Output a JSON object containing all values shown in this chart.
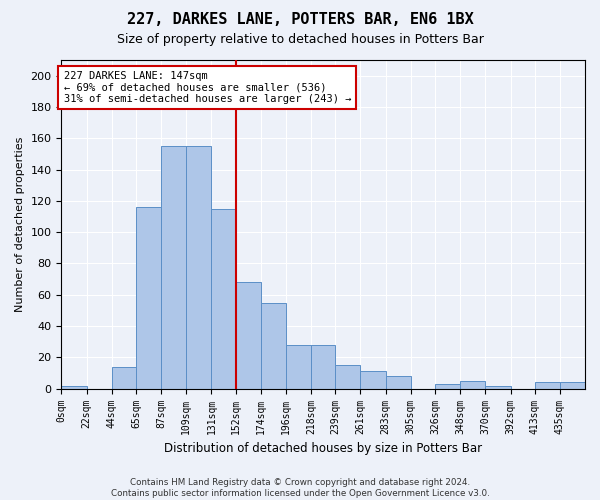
{
  "title": "227, DARKES LANE, POTTERS BAR, EN6 1BX",
  "subtitle": "Size of property relative to detached houses in Potters Bar",
  "xlabel": "Distribution of detached houses by size in Potters Bar",
  "ylabel": "Number of detached properties",
  "bar_color": "#aec6e8",
  "bar_edge_color": "#5b8fc7",
  "bin_labels": [
    "0sqm",
    "22sqm",
    "44sqm",
    "65sqm",
    "87sqm",
    "109sqm",
    "131sqm",
    "152sqm",
    "174sqm",
    "196sqm",
    "218sqm",
    "239sqm",
    "261sqm",
    "283sqm",
    "305sqm",
    "326sqm",
    "348sqm",
    "370sqm",
    "392sqm",
    "413sqm",
    "435sqm"
  ],
  "bar_heights": [
    2,
    0,
    14,
    116,
    155,
    155,
    115,
    68,
    55,
    28,
    28,
    15,
    11,
    8,
    0,
    3,
    5,
    2,
    0,
    4,
    4
  ],
  "vline_color": "#cc0000",
  "ylim": [
    0,
    210
  ],
  "yticks": [
    0,
    20,
    40,
    60,
    80,
    100,
    120,
    140,
    160,
    180,
    200
  ],
  "annotation_text": "227 DARKES LANE: 147sqm\n← 69% of detached houses are smaller (536)\n31% of semi-detached houses are larger (243) →",
  "annotation_box_color": "#ffffff",
  "annotation_box_edge_color": "#cc0000",
  "bin_edges": [
    0,
    22,
    44,
    65,
    87,
    109,
    131,
    152,
    174,
    196,
    218,
    239,
    261,
    283,
    305,
    326,
    348,
    370,
    392,
    413,
    435,
    457
  ],
  "background_color": "#edf1f9",
  "grid_color": "#ffffff",
  "footnote": "Contains HM Land Registry data © Crown copyright and database right 2024.\nContains public sector information licensed under the Open Government Licence v3.0."
}
